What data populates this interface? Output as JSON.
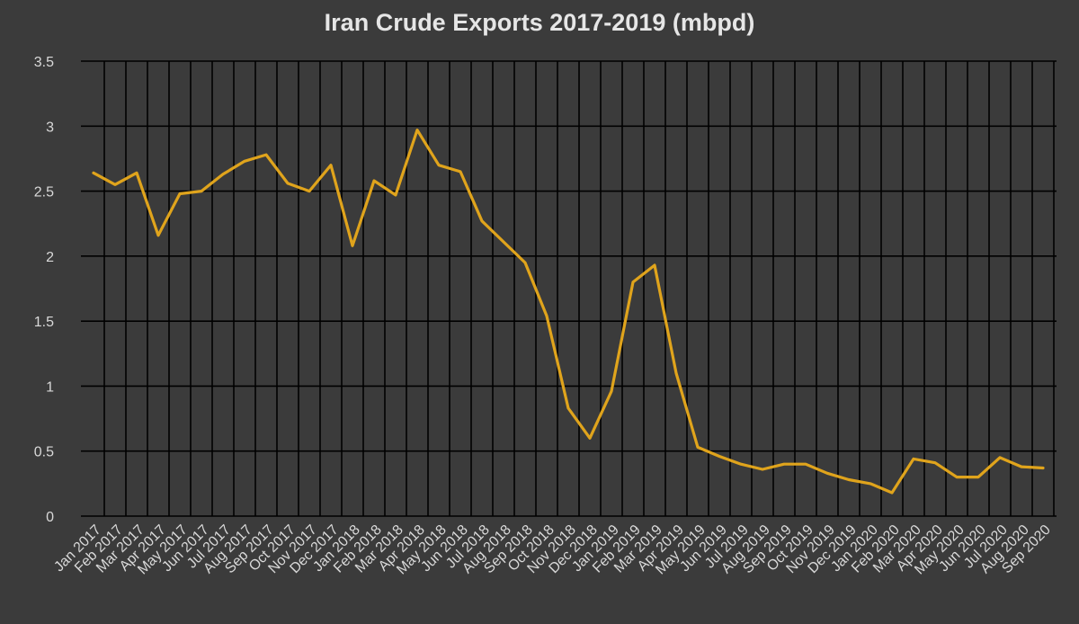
{
  "chart_data": {
    "type": "line",
    "title": "Iran Crude Exports 2017-2019 (mbpd)",
    "xlabel": "",
    "ylabel": "",
    "ylim": [
      0,
      3.5
    ],
    "yticks": [
      "0",
      "0.5",
      "1",
      "1.5",
      "2",
      "2.5",
      "3",
      "3.5"
    ],
    "grid": true,
    "categories": [
      "Jan 2017",
      "Feb 2017",
      "Mar 2017",
      "Apr 2017",
      "May 2017",
      "Jun 2017",
      "Jul 2017",
      "Aug 2017",
      "Sep 2017",
      "Oct 2017",
      "Nov 2017",
      "Dec 2017",
      "Jan 2018",
      "Feb 2018",
      "Mar 2018",
      "Apr 2018",
      "May 2018",
      "Jun 2018",
      "Jul 2018",
      "Aug 2018",
      "Sep 2018",
      "Oct 2018",
      "Nov 2018",
      "Dec 2018",
      "Jan 2019",
      "Feb 2019",
      "Mar 2019",
      "Apr 2019",
      "May 2019",
      "Jun 2019",
      "Jul 2019",
      "Aug 2019",
      "Sep 2019",
      "Oct 2019",
      "Nov 2019",
      "Dec 2019",
      "Jan 2020",
      "Feb 2020",
      "Mar 2020",
      "Apr 2020",
      "May 2020",
      "Jun 2020",
      "Jul 2020",
      "Aug 2020",
      "Sep 2020"
    ],
    "series": [
      {
        "color": "#e0a41c",
        "values": [
          2.64,
          2.55,
          2.64,
          2.16,
          2.48,
          2.5,
          2.63,
          2.73,
          2.78,
          2.56,
          2.5,
          2.7,
          2.08,
          2.58,
          2.47,
          2.97,
          2.7,
          2.65,
          2.27,
          2.11,
          1.95,
          1.54,
          0.83,
          0.6,
          0.96,
          1.8,
          1.93,
          1.1,
          0.53,
          0.46,
          0.4,
          0.36,
          0.4,
          0.4,
          0.33,
          0.28,
          0.25,
          0.18,
          0.44,
          0.41,
          0.3,
          0.3,
          0.45,
          0.38,
          0.37
        ]
      }
    ]
  }
}
